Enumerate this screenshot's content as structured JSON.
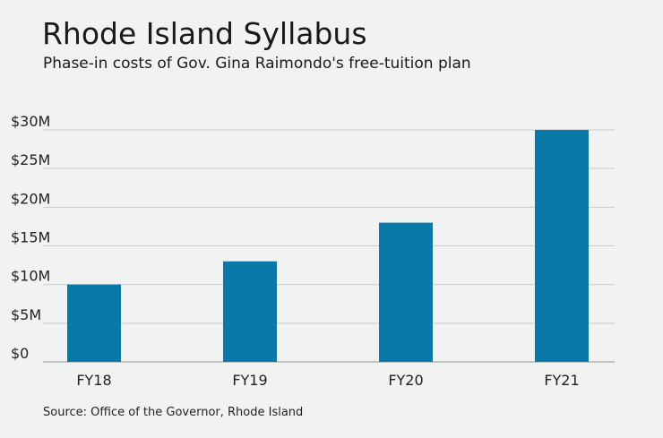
{
  "header": {
    "title": "Rhode Island Syllabus",
    "subtitle": "Phase-in costs of Gov. Gina Raimondo's free-tuition plan"
  },
  "footer": {
    "source": "Source: Office of the Governor, Rhode Island"
  },
  "colors": {
    "bar": "#0a79a8",
    "grid": "#c9cbcc",
    "axis": "#8f9294"
  },
  "chart_data": {
    "type": "bar",
    "categories": [
      "FY18",
      "FY19",
      "FY20",
      "FY21"
    ],
    "values": [
      10,
      13,
      18,
      30
    ],
    "unit": "millions of dollars",
    "ylim": [
      0,
      30
    ],
    "yticks": [
      0,
      5,
      10,
      15,
      20,
      25,
      30
    ],
    "ytick_labels": [
      "$0",
      "$5M",
      "$10M",
      "$15M",
      "$20M",
      "$25M",
      "$30M"
    ],
    "grid": true,
    "legend": "none"
  }
}
